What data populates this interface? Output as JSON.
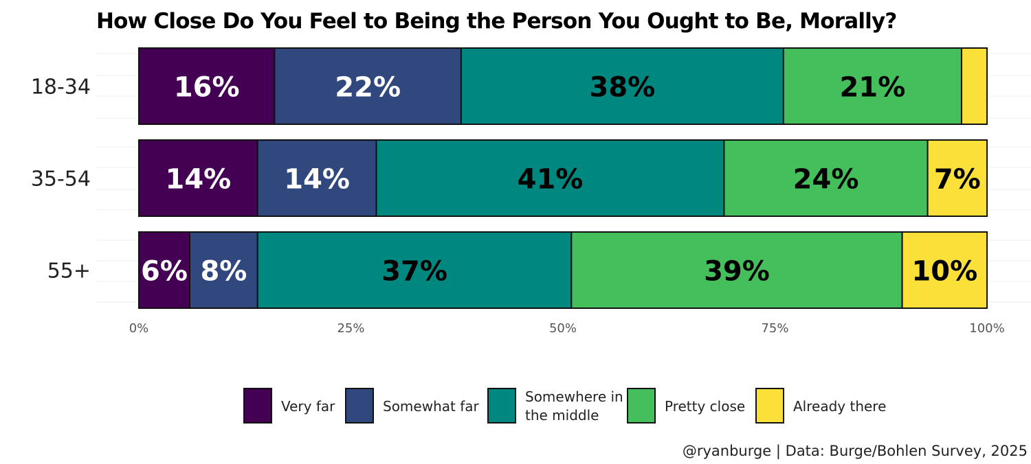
{
  "chart_data": {
    "type": "bar",
    "orientation": "horizontal",
    "stacked": true,
    "title": "How Close Do You Feel to Being the Person You Ought to Be, Morally?",
    "categories": [
      "18-34",
      "35-54",
      "55+"
    ],
    "series": [
      {
        "name": "Very far",
        "color": "#440154",
        "label_color": "#ffffff",
        "values": [
          16,
          14,
          6
        ],
        "labels": [
          "16%",
          "14%",
          "6%"
        ]
      },
      {
        "name": "Somewhat far",
        "color": "#31487f",
        "label_color": "#ffffff",
        "values": [
          22,
          14,
          8
        ],
        "labels": [
          "22%",
          "14%",
          "8%"
        ]
      },
      {
        "name": "Somewhere in the middle",
        "legend_lines": [
          "Somewhere in",
          "the middle"
        ],
        "color": "#00877f",
        "label_color": "#000000",
        "values": [
          38,
          41,
          37
        ],
        "labels": [
          "38%",
          "41%",
          "37%"
        ]
      },
      {
        "name": "Pretty close",
        "color": "#45be5c",
        "label_color": "#000000",
        "values": [
          21,
          24,
          39
        ],
        "labels": [
          "21%",
          "24%",
          "39%"
        ]
      },
      {
        "name": "Already there",
        "color": "#fce03a",
        "label_color": "#000000",
        "values": [
          3,
          7,
          10
        ],
        "labels": [
          "",
          "7%",
          "10%"
        ]
      }
    ],
    "xlim": [
      0,
      100
    ],
    "x_ticks": [
      0,
      25,
      50,
      75,
      100
    ],
    "x_tick_labels": [
      "0%",
      "25%",
      "50%",
      "75%",
      "100%"
    ],
    "xlabel": "",
    "ylabel": "",
    "grid": true,
    "legend_position": "bottom",
    "caption": "@ryanburge | Data: Burge/Bohlen Survey, 2025"
  }
}
